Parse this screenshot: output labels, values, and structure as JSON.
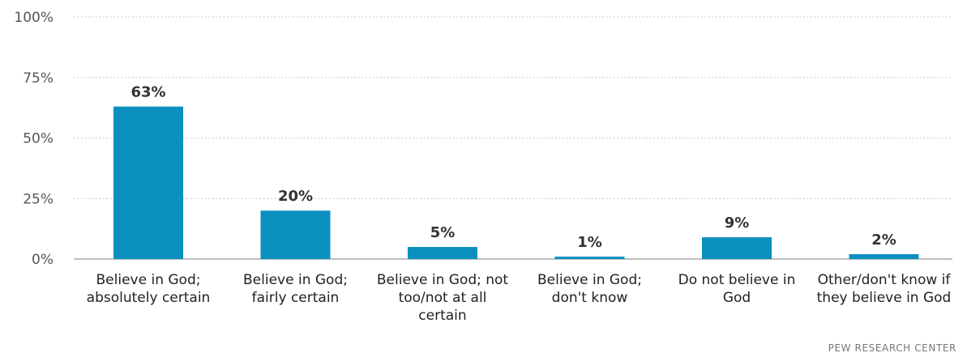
{
  "chart_data": {
    "type": "bar",
    "categories": [
      [
        "Believe in God;",
        "absolutely certain"
      ],
      [
        "Believe in God;",
        "fairly certain"
      ],
      [
        "Believe in God; not",
        "too/not at all",
        "certain"
      ],
      [
        "Believe in God;",
        "don't know"
      ],
      [
        "Do not believe in",
        "God"
      ],
      [
        "Other/don't know if",
        "they believe in God"
      ]
    ],
    "values": [
      63,
      20,
      5,
      1,
      9,
      2
    ],
    "value_labels": [
      "63%",
      "20%",
      "5%",
      "1%",
      "9%",
      "2%"
    ],
    "ylim": [
      0,
      100
    ],
    "yticks": [
      0,
      25,
      50,
      75,
      100
    ],
    "ytick_labels": [
      "0%",
      "25%",
      "50%",
      "75%",
      "100%"
    ],
    "grid": true,
    "bar_color": "#0b8fbf"
  },
  "source": "PEW RESEARCH CENTER"
}
